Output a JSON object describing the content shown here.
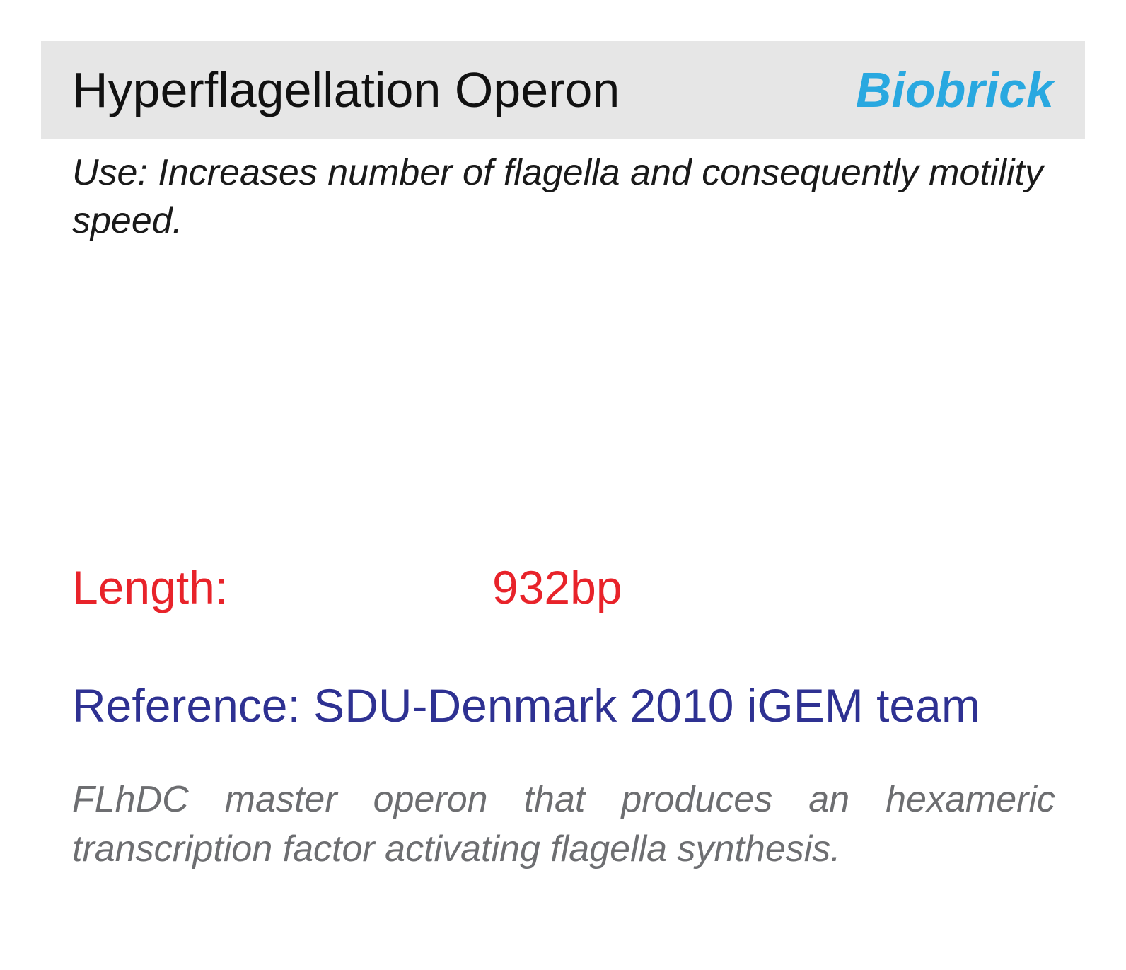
{
  "header": {
    "title": "Hyperflagellation Operon",
    "badge": "Biobrick"
  },
  "use": "Use: Increases number of flagella and consequently motility speed.",
  "length": {
    "label": "Length:",
    "value": "932bp"
  },
  "reference": "Reference: SDU-Denmark 2010 iGEM team",
  "description": "FLhDC master operon that produces an hexameric transcription factor activating flagella synthesis.",
  "colors": {
    "header_bg": "#e6e6e6",
    "badge": "#29a8e0",
    "length": "#e8232a",
    "reference": "#2e3192",
    "description": "#6d6e71"
  }
}
